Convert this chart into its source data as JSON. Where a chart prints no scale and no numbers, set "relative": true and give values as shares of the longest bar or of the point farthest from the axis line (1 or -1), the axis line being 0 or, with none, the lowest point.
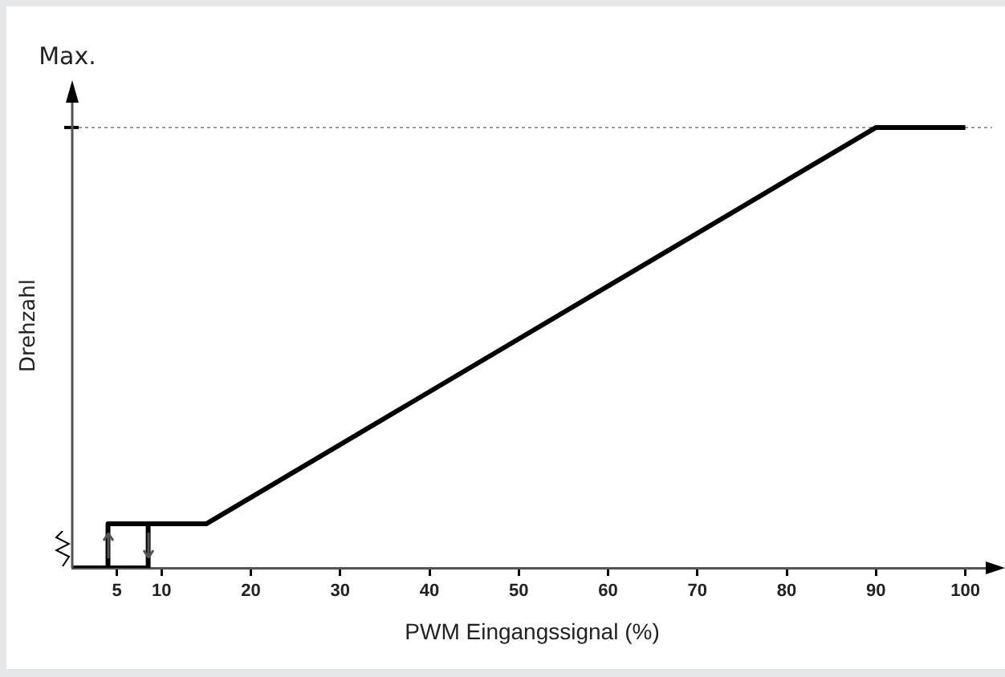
{
  "chart_data": {
    "type": "line",
    "relative": true,
    "xlabel": "PWM Eingangssignal (%)",
    "ylabel": "Drehzahl",
    "annotations": [
      "Max."
    ],
    "xlim": [
      0,
      103
    ],
    "xticks": [
      5,
      10,
      20,
      30,
      40,
      50,
      60,
      70,
      80,
      90,
      100
    ],
    "series": [
      {
        "color": "#000000",
        "x": [
          0,
          8.5,
          8.5
        ],
        "values": [
          0,
          0,
          0.1
        ]
      },
      {
        "color": "#000000",
        "x": [
          4,
          4,
          15,
          90,
          100
        ],
        "values": [
          0,
          0.1,
          0.1,
          1,
          1
        ]
      }
    ],
    "ref_lines": [
      {
        "axis": "y",
        "value": 1,
        "color": "#999999",
        "line_style": "dotted"
      }
    ],
    "marker": "none",
    "line_style": "solid",
    "grid": false,
    "legend": false,
    "tick_labels": "x"
  }
}
